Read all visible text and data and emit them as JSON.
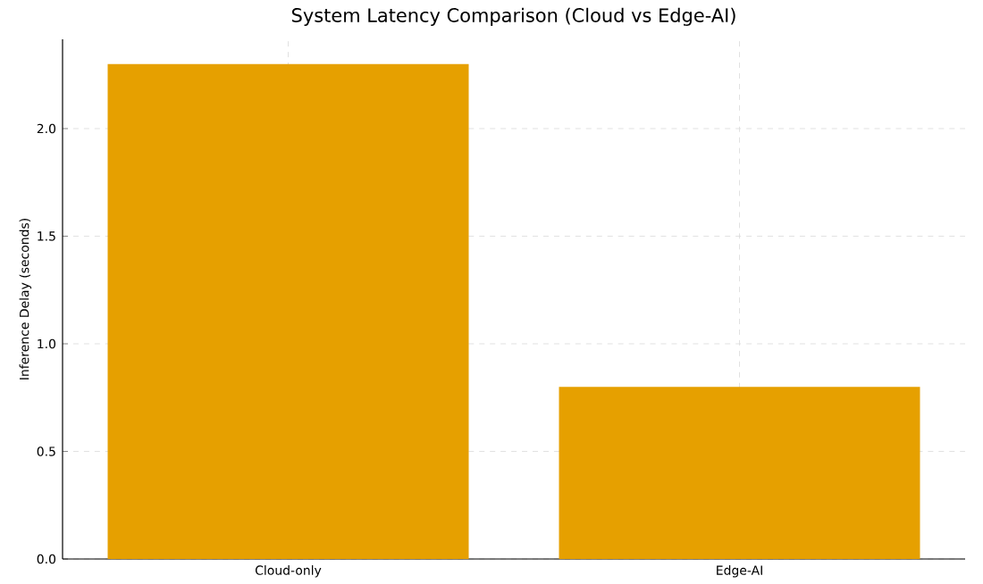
{
  "chart_data": {
    "type": "bar",
    "title": "System Latency Comparison (Cloud vs Edge-AI)",
    "ylabel": "Inference Delay (seconds)",
    "categories": [
      "Cloud-only",
      "Edge-AI"
    ],
    "values": [
      2.3,
      0.8
    ],
    "color": "#e6a000",
    "ylim": [
      0,
      2.415
    ],
    "yticks": [
      {
        "value": 0,
        "label": "0.0"
      },
      {
        "value": 0.5,
        "label": "0.5"
      },
      {
        "value": 1,
        "label": "1.0"
      },
      {
        "value": 1.5,
        "label": "1.5"
      },
      {
        "value": 2,
        "label": "2.0"
      }
    ],
    "grid": true
  }
}
